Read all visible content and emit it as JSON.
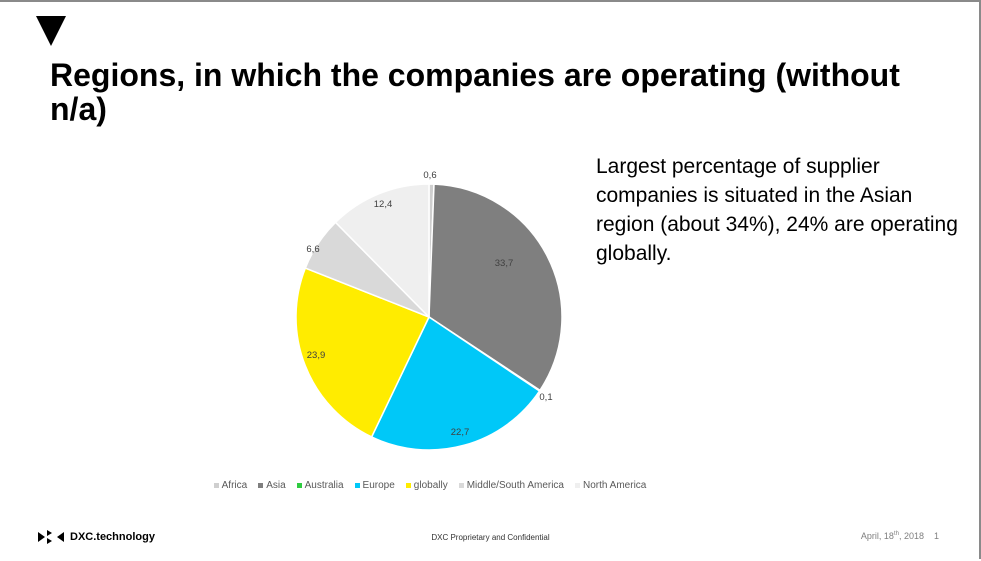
{
  "slide": {
    "title": "Regions, in which the companies are operating (without n/a)",
    "callout": "Largest percentage of supplier companies is situated in the Asian region (about 34%), 24% are operating globally.",
    "footer": {
      "logo_text": "DXC.technology",
      "confidential": "DXC Proprietary and Confidential",
      "date_prefix": "April, 18",
      "date_sup": "th",
      "date_suffix": ", 2018",
      "page_number": "1"
    }
  },
  "chart_data": {
    "type": "pie",
    "title": "",
    "series": [
      {
        "name": "Africa",
        "value": 0.6,
        "label": "0,6",
        "color": "#cfcfcf"
      },
      {
        "name": "Asia",
        "value": 33.7,
        "label": "33,7",
        "color": "#7f7f7f"
      },
      {
        "name": "Australia",
        "value": 0.1,
        "label": "0,1",
        "color": "#2ecc40"
      },
      {
        "name": "Europe",
        "value": 22.7,
        "label": "22,7",
        "color": "#00c8f8"
      },
      {
        "name": "globally",
        "value": 23.9,
        "label": "23,9",
        "color": "#ffec00"
      },
      {
        "name": "Middle/South America",
        "value": 6.6,
        "label": "6,6",
        "color": "#d9d9d9"
      },
      {
        "name": "North America",
        "value": 12.4,
        "label": "12,4",
        "color": "#efefef"
      }
    ],
    "legend_position": "bottom"
  }
}
